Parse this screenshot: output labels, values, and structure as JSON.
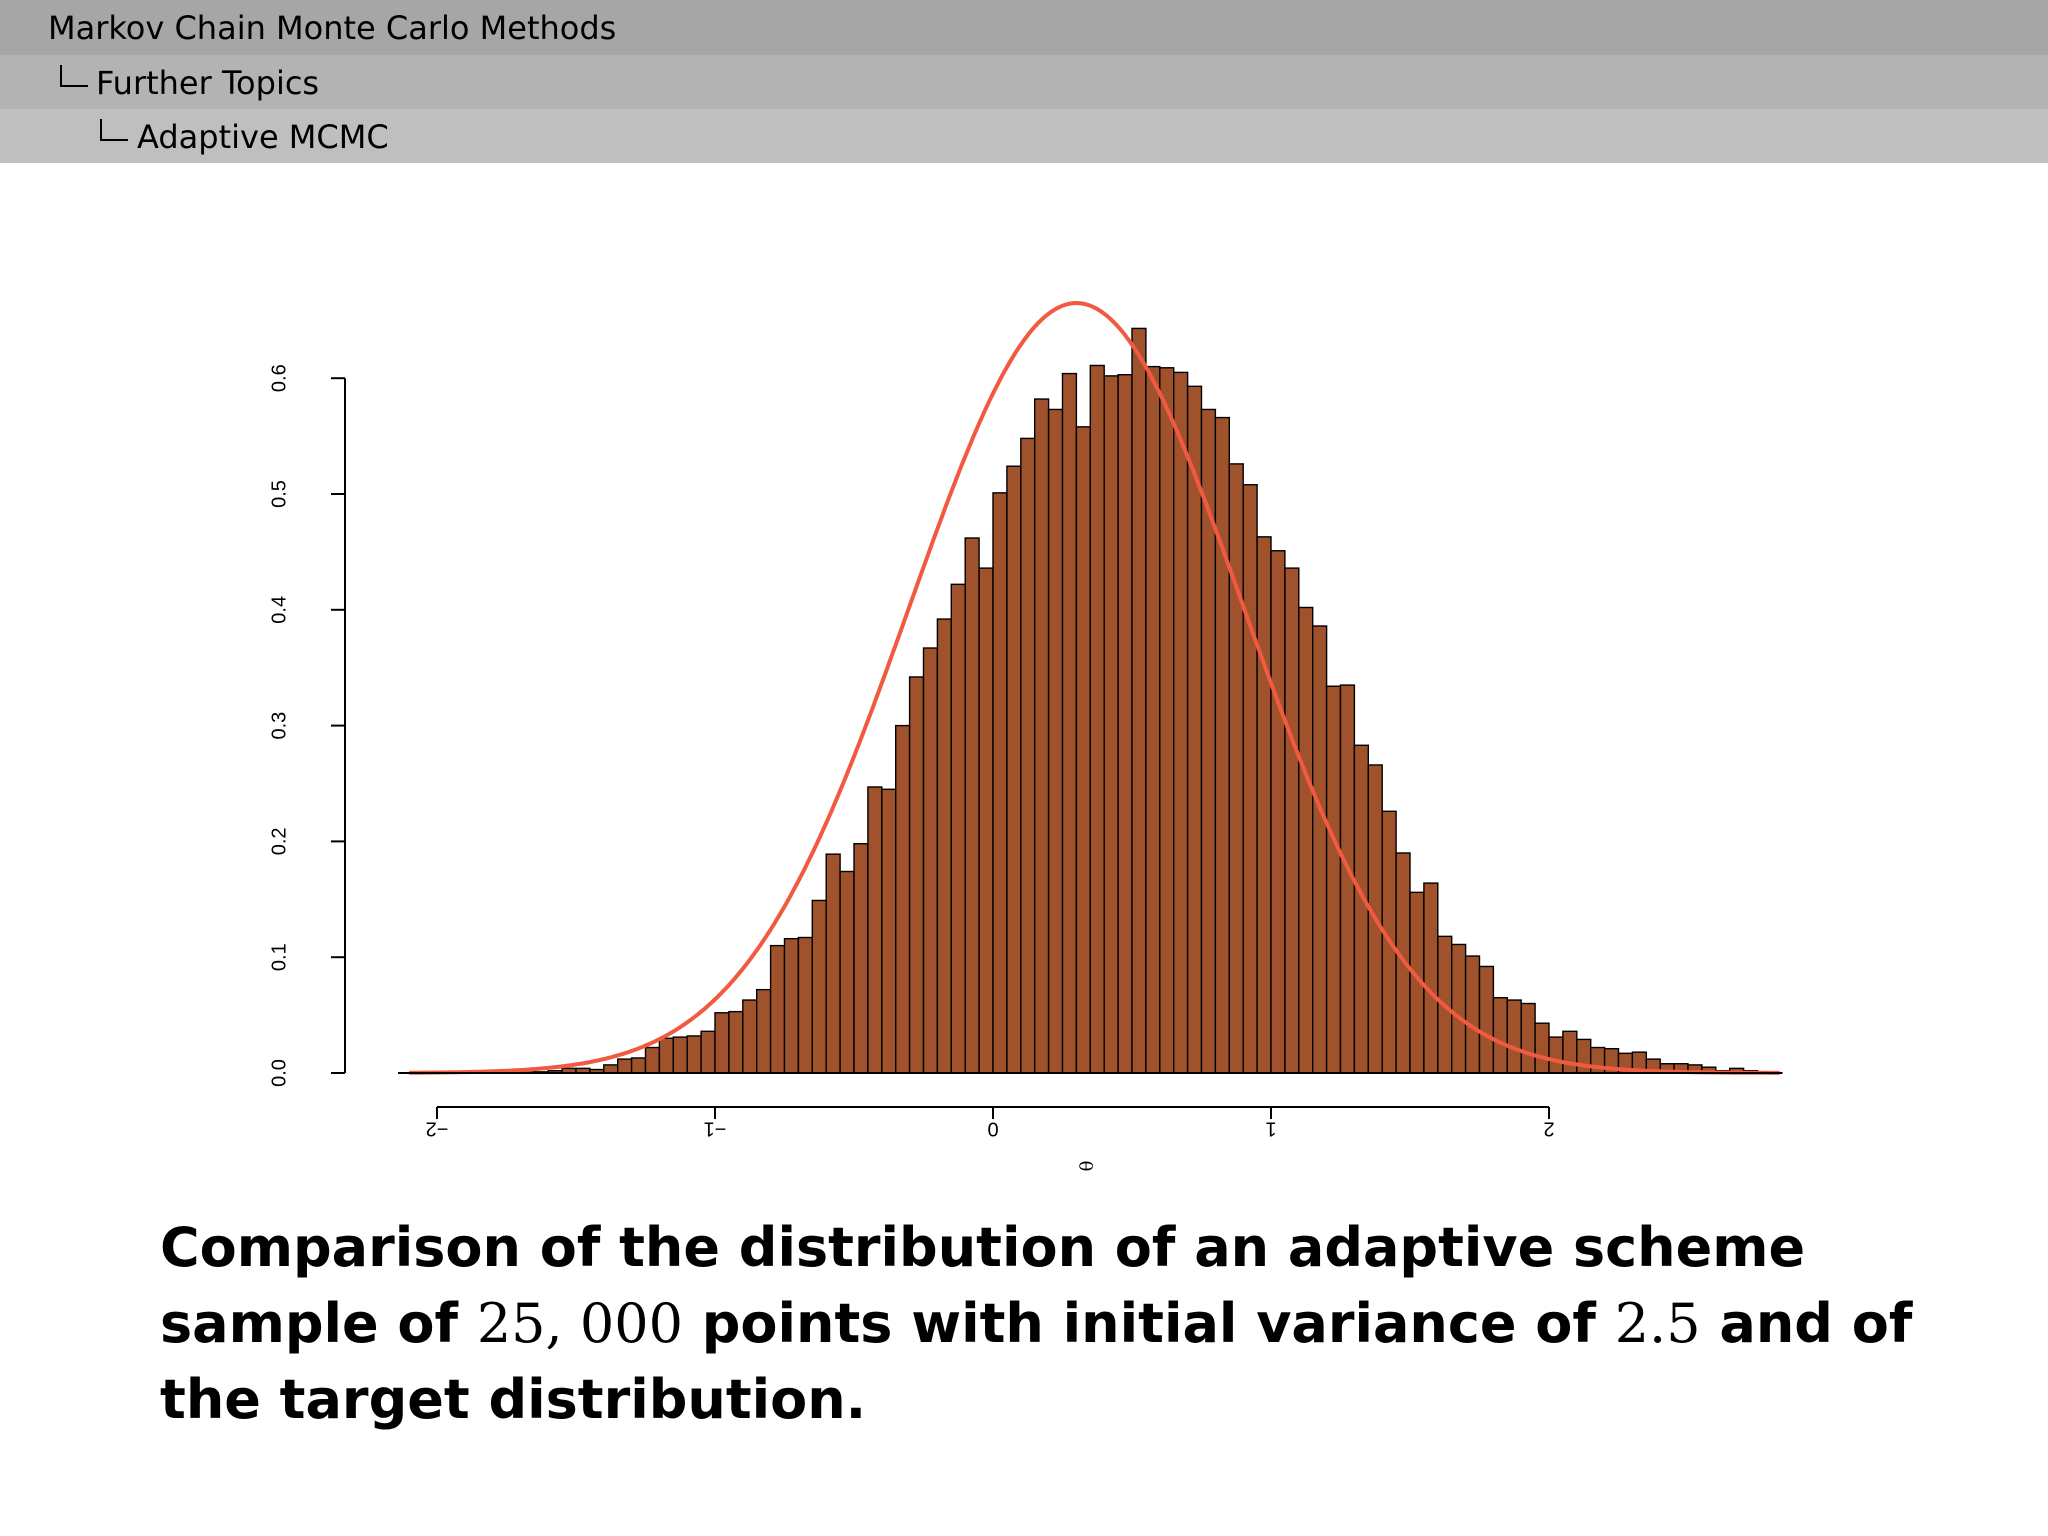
{
  "breadcrumb": {
    "level1": "Markov Chain Monte Carlo Methods",
    "level2": "Further Topics",
    "level3": "Adaptive MCMC"
  },
  "caption": {
    "part1": "Comparison of the distribution of an adaptive scheme sample of ",
    "n_points": "25, 000",
    "part2": " points with initial variance of ",
    "variance": "2.5",
    "part3": " and of the target distribution."
  },
  "chart_data": {
    "type": "bar",
    "title": "",
    "xlabel": "θ",
    "ylabel": "",
    "xlim": [
      -2.15,
      2.85
    ],
    "ylim": [
      0,
      0.65
    ],
    "x_ticks": [
      "−2",
      "−1",
      "0",
      "1",
      "2"
    ],
    "x_tick_values": [
      -2,
      -1,
      0,
      1,
      2
    ],
    "y_ticks": [
      "0.0",
      "0.1",
      "0.2",
      "0.3",
      "0.4",
      "0.5",
      "0.6"
    ],
    "y_tick_values": [
      0.0,
      0.1,
      0.2,
      0.3,
      0.4,
      0.5,
      0.6
    ],
    "bin_width": 0.05,
    "bin_start": -2.1,
    "values": [
      0,
      0,
      0,
      0,
      0,
      0,
      0,
      0,
      0.002,
      0.001,
      0.002,
      0.004,
      0.004,
      0.003,
      0.007,
      0.012,
      0.013,
      0.022,
      0.03,
      0.031,
      0.032,
      0.036,
      0.052,
      0.053,
      0.063,
      0.072,
      0.11,
      0.116,
      0.117,
      0.149,
      0.189,
      0.174,
      0.198,
      0.247,
      0.245,
      0.3,
      0.342,
      0.367,
      0.392,
      0.422,
      0.462,
      0.436,
      0.501,
      0.524,
      0.548,
      0.582,
      0.573,
      0.604,
      0.558,
      0.611,
      0.602,
      0.603,
      0.643,
      0.61,
      0.609,
      0.605,
      0.593,
      0.573,
      0.566,
      0.526,
      0.508,
      0.463,
      0.451,
      0.436,
      0.402,
      0.386,
      0.334,
      0.335,
      0.283,
      0.266,
      0.226,
      0.19,
      0.156,
      0.164,
      0.118,
      0.111,
      0.101,
      0.092,
      0.065,
      0.063,
      0.06,
      0.043,
      0.031,
      0.036,
      0.029,
      0.022,
      0.021,
      0.017,
      0.018,
      0.012,
      0.008,
      0.008,
      0.007,
      0.005,
      0.002,
      0.004,
      0.002,
      0,
      0,
      0
    ],
    "target_density": {
      "distribution": "normal",
      "mean": 0.3,
      "sd": 0.6,
      "color": "#f15a40"
    },
    "bar_color": "#a0522d",
    "grid": false
  }
}
